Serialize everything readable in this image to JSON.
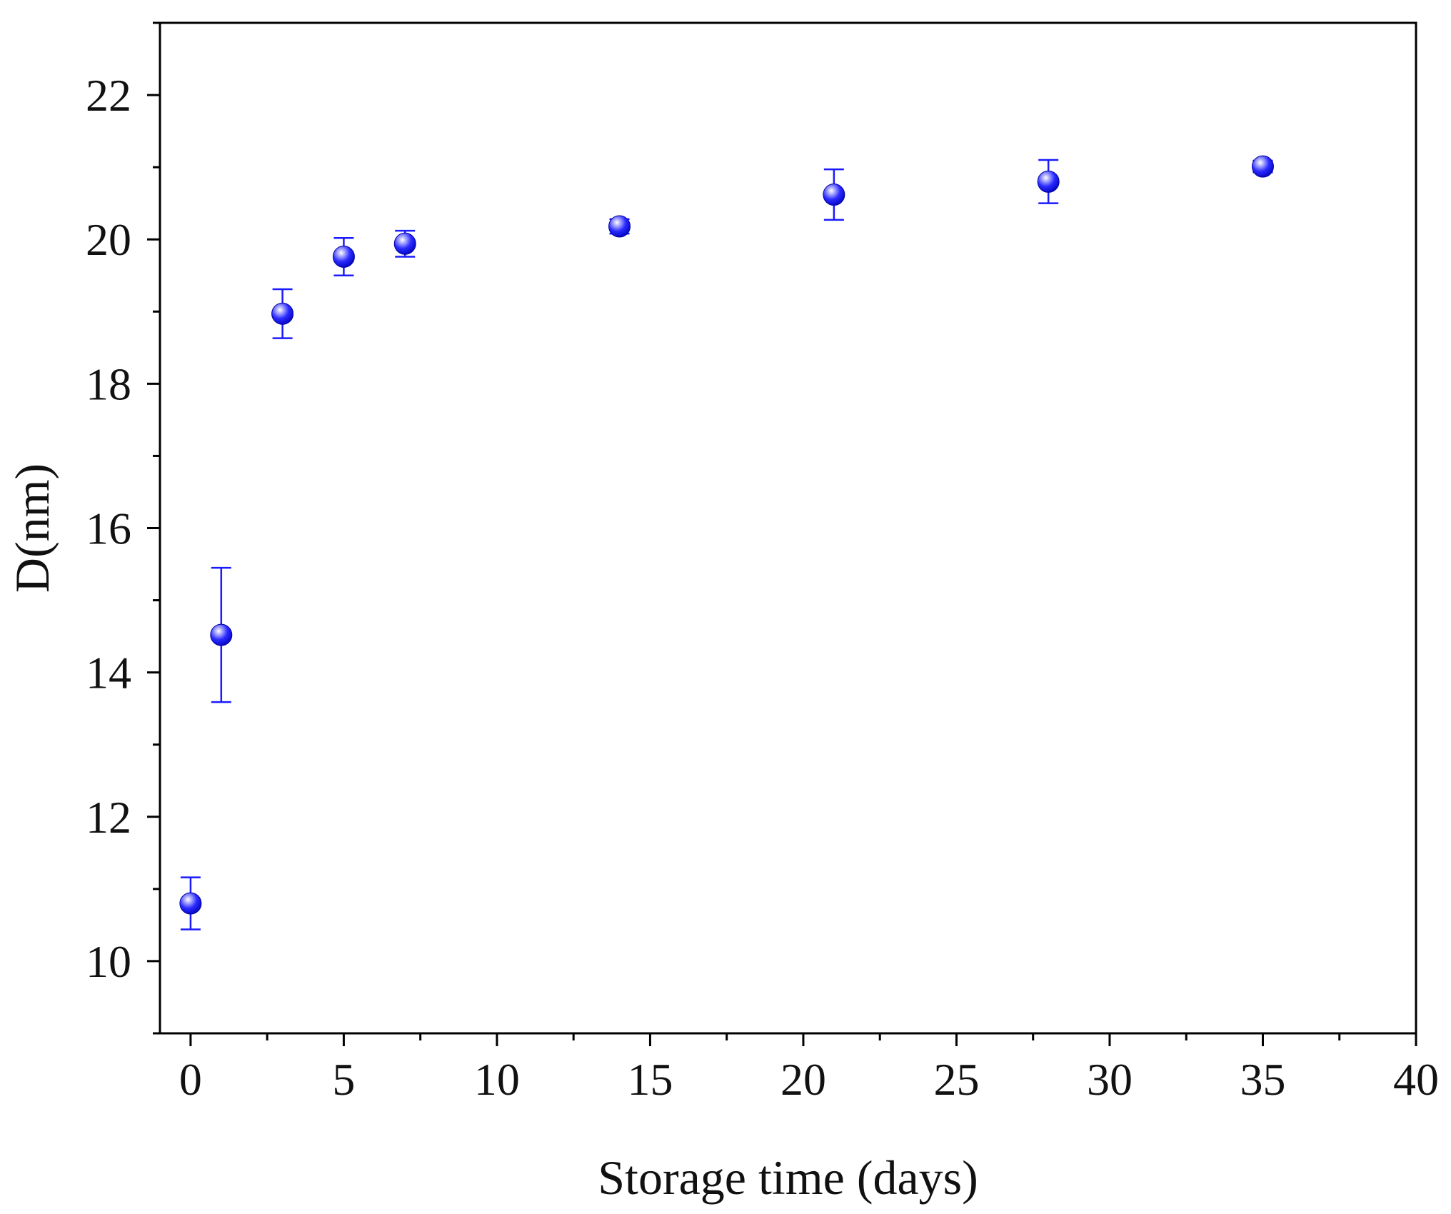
{
  "chart_data": {
    "type": "scatter",
    "xlabel": "Storage time (days)",
    "ylabel": "D(nm)",
    "xlim": [
      -1,
      40
    ],
    "ylim": [
      9,
      23
    ],
    "x_ticks": [
      0,
      5,
      10,
      15,
      20,
      25,
      30,
      35,
      40
    ],
    "y_ticks": [
      10,
      12,
      14,
      16,
      18,
      20,
      22
    ],
    "x_tick_labels": [
      "0",
      "5",
      "10",
      "15",
      "20",
      "25",
      "30",
      "35",
      "40"
    ],
    "y_tick_labels": [
      "10",
      "12",
      "14",
      "16",
      "18",
      "20",
      "22"
    ],
    "grid": false,
    "legend": false,
    "marker_color": "#1a1aff",
    "series": [
      {
        "points": [
          {
            "x": 0,
            "y": 10.8,
            "err": 0.36
          },
          {
            "x": 1,
            "y": 14.52,
            "err": 0.93
          },
          {
            "x": 3,
            "y": 18.97,
            "err": 0.34
          },
          {
            "x": 5,
            "y": 19.76,
            "err": 0.26
          },
          {
            "x": 7,
            "y": 19.94,
            "err": 0.18
          },
          {
            "x": 14,
            "y": 20.18,
            "err": 0.1
          },
          {
            "x": 21,
            "y": 20.62,
            "err": 0.35
          },
          {
            "x": 28,
            "y": 20.8,
            "err": 0.3
          },
          {
            "x": 35,
            "y": 21.01,
            "err": 0.08
          }
        ]
      }
    ]
  }
}
